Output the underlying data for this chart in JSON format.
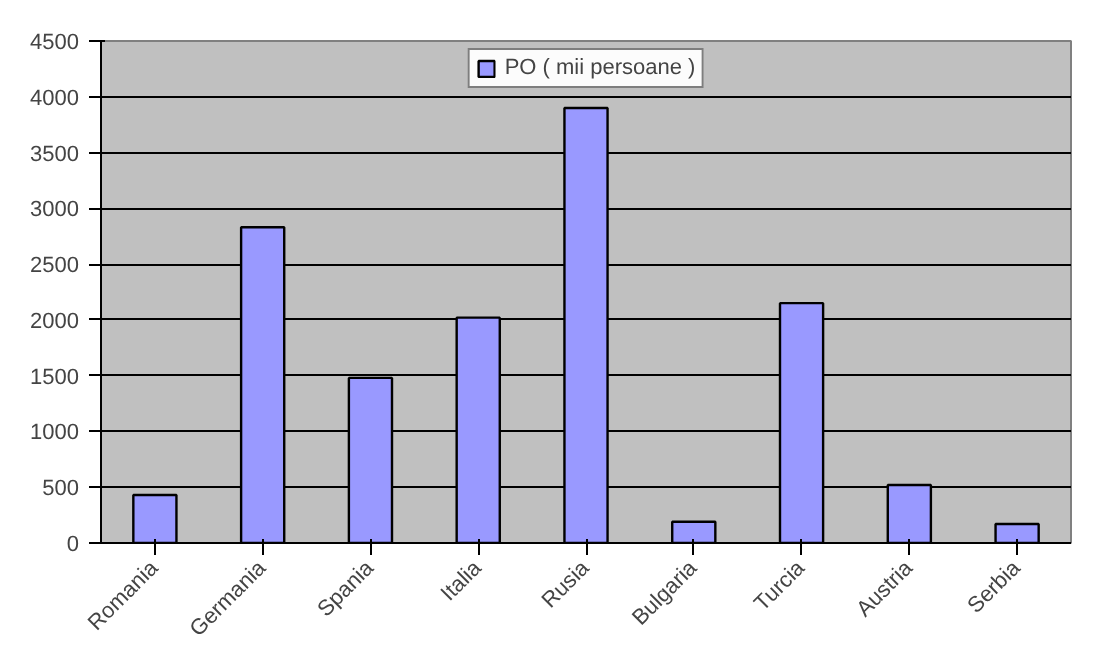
{
  "chart_data": {
    "type": "bar",
    "categories": [
      "Romania",
      "Germania",
      "Spania",
      "Italia",
      "Rusia",
      "Bulgaria",
      "Turcia",
      "Austria",
      "Serbia"
    ],
    "series": [
      {
        "name": "PO ( mii persoane )",
        "color": "#9999ff",
        "values": [
          430,
          2830,
          1480,
          2020,
          3900,
          190,
          2150,
          520,
          170
        ]
      }
    ],
    "ylim": [
      0,
      4500
    ],
    "yticks": [
      0,
      500,
      1000,
      1500,
      2000,
      2500,
      3000,
      3500,
      4000,
      4500
    ],
    "grid": "y",
    "legend": "top"
  }
}
